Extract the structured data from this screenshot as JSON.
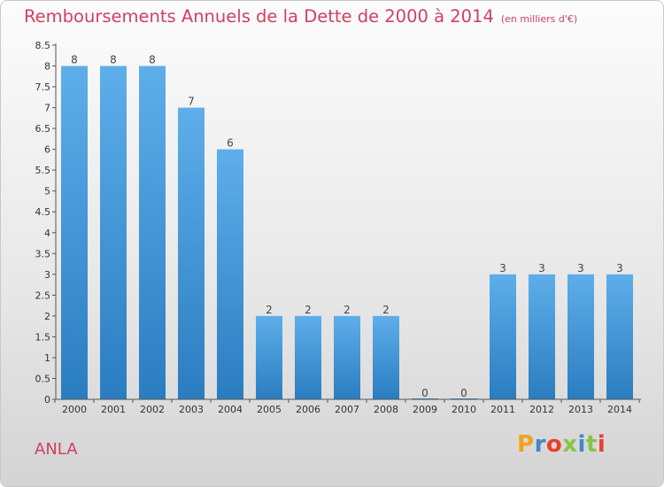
{
  "header": {
    "title": "Remboursements Annuels de la Dette de 2000 à 2014",
    "subtitle": "(en milliers d'€)"
  },
  "footer": {
    "town": "ANLA",
    "logo_text": "Proxiti"
  },
  "colors": {
    "title": "#d0405f",
    "bar_light": "#5eaeea",
    "bar_dark": "#2a7dc0",
    "logo": [
      "#f2a21a",
      "#3f88c8",
      "#e8402d",
      "#8bc34a",
      "#3f88c8",
      "#8bc34a",
      "#e8402d"
    ]
  },
  "chart_data": {
    "type": "bar",
    "categories": [
      "2000",
      "2001",
      "2002",
      "2003",
      "2004",
      "2005",
      "2006",
      "2007",
      "2008",
      "2009",
      "2010",
      "2011",
      "2012",
      "2013",
      "2014"
    ],
    "values": [
      8,
      8,
      8,
      7,
      6,
      2,
      2,
      2,
      2,
      0,
      0,
      3,
      3,
      3,
      3
    ],
    "value_labels": [
      "8",
      "8",
      "8",
      "7",
      "6",
      "2",
      "2",
      "2",
      "2",
      "0",
      "0",
      "3",
      "3",
      "3",
      "3"
    ],
    "ylim": [
      0,
      8.5
    ],
    "yticks": [
      0,
      0.5,
      1,
      1.5,
      2,
      2.5,
      3,
      3.5,
      4,
      4.5,
      5,
      5.5,
      6,
      6.5,
      7,
      7.5,
      8,
      8.5
    ],
    "ytick_labels": [
      "0",
      "0.5",
      "1",
      "1.5",
      "2",
      "2.5",
      "3",
      "3.5",
      "4",
      "4.5",
      "5",
      "5.5",
      "6",
      "6.5",
      "7",
      "7.5",
      "8",
      "8.5"
    ],
    "grid": false,
    "xlabel": "",
    "ylabel": ""
  }
}
